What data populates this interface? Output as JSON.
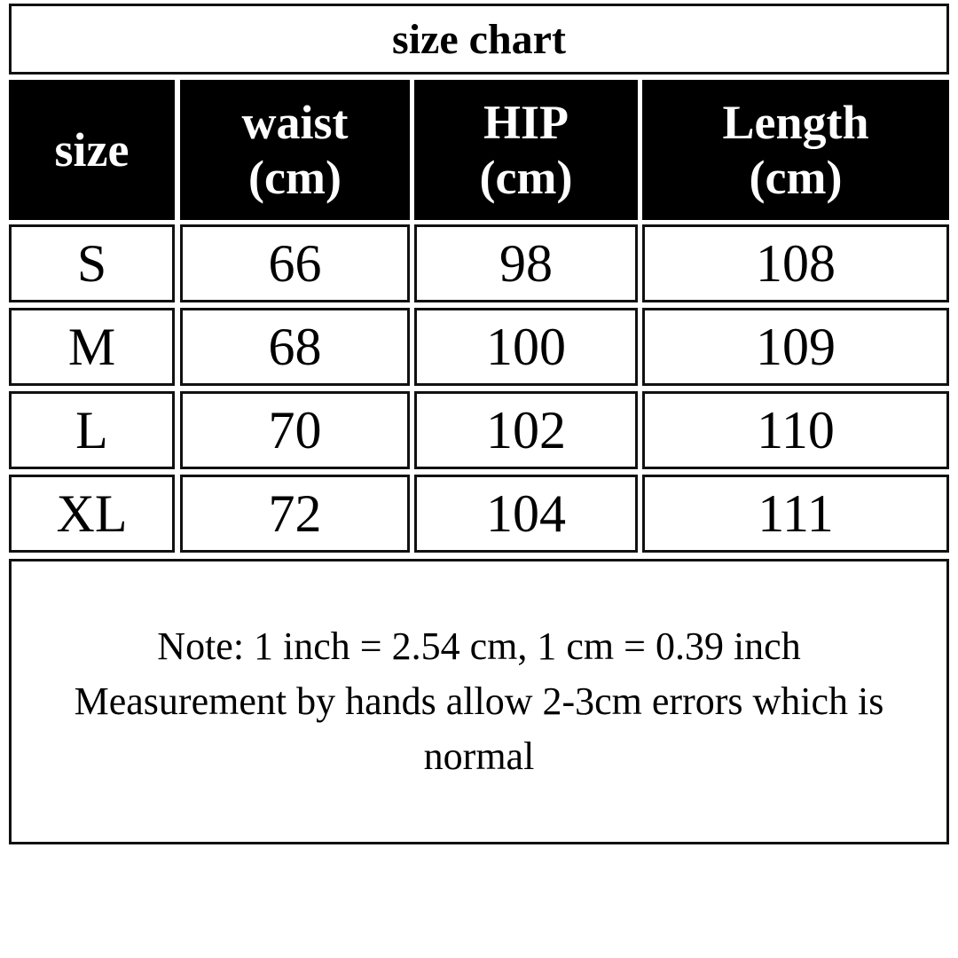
{
  "title": "size chart",
  "headers": {
    "size": "size",
    "waist": [
      "waist",
      "(cm)"
    ],
    "hip": [
      "HIP",
      "(cm)"
    ],
    "length": [
      "Length",
      "(cm)"
    ]
  },
  "rows": [
    {
      "size": "S",
      "waist": "66",
      "hip": "98",
      "length": "108"
    },
    {
      "size": "M",
      "waist": "68",
      "hip": "100",
      "length": "109"
    },
    {
      "size": "L",
      "waist": "70",
      "hip": "102",
      "length": "110"
    },
    {
      "size": "XL",
      "waist": "72",
      "hip": "104",
      "length": "111"
    }
  ],
  "note": {
    "line1": "Note: 1 inch = 2.54 cm, 1 cm = 0.39 inch",
    "line2": "Measurement by hands allow 2-3cm errors which is",
    "line3": "normal"
  }
}
